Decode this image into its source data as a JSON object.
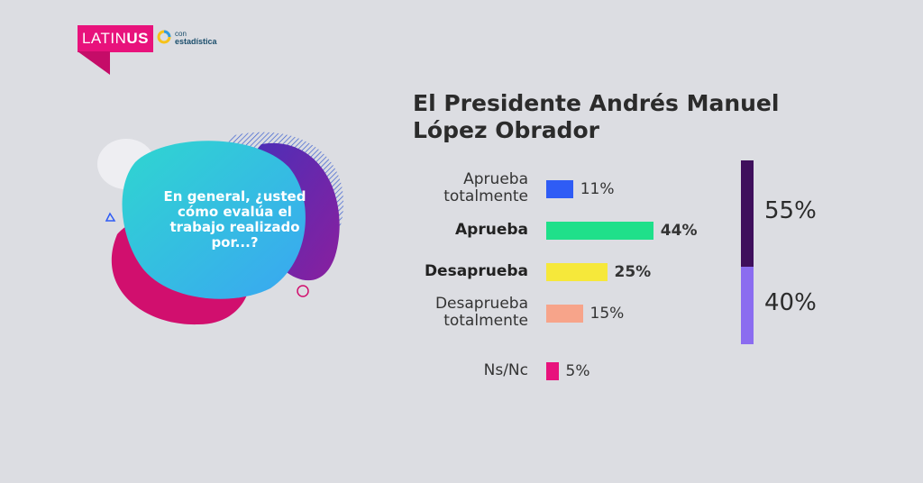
{
  "brand": {
    "name_light": "LATIN",
    "name_bold": "US",
    "partner_small": "con",
    "partner_big": "estadística"
  },
  "question": "En general, ¿usted cómo evalúa el trabajo realizado por...?",
  "chart_data": {
    "type": "bar",
    "title": "El Presidente Andrés Manuel López Obrador",
    "categories": [
      "Aprueba totalmente",
      "Aprueba",
      "Desaprueba",
      "Desaprueba totalmente",
      "Ns/Nc"
    ],
    "values": [
      11,
      44,
      25,
      15,
      5
    ],
    "value_labels": [
      "11%",
      "44%",
      "25%",
      "15%",
      "5%"
    ],
    "colors": [
      "#2f5cf5",
      "#1fe08a",
      "#f6e83a",
      "#f7a48a",
      "#e8127c"
    ],
    "bold": [
      false,
      true,
      true,
      false,
      false
    ],
    "summary": [
      {
        "value": 55,
        "label": "55%",
        "color": "#3f0f5c"
      },
      {
        "value": 40,
        "label": "40%",
        "color": "#8b6cf0"
      }
    ]
  }
}
